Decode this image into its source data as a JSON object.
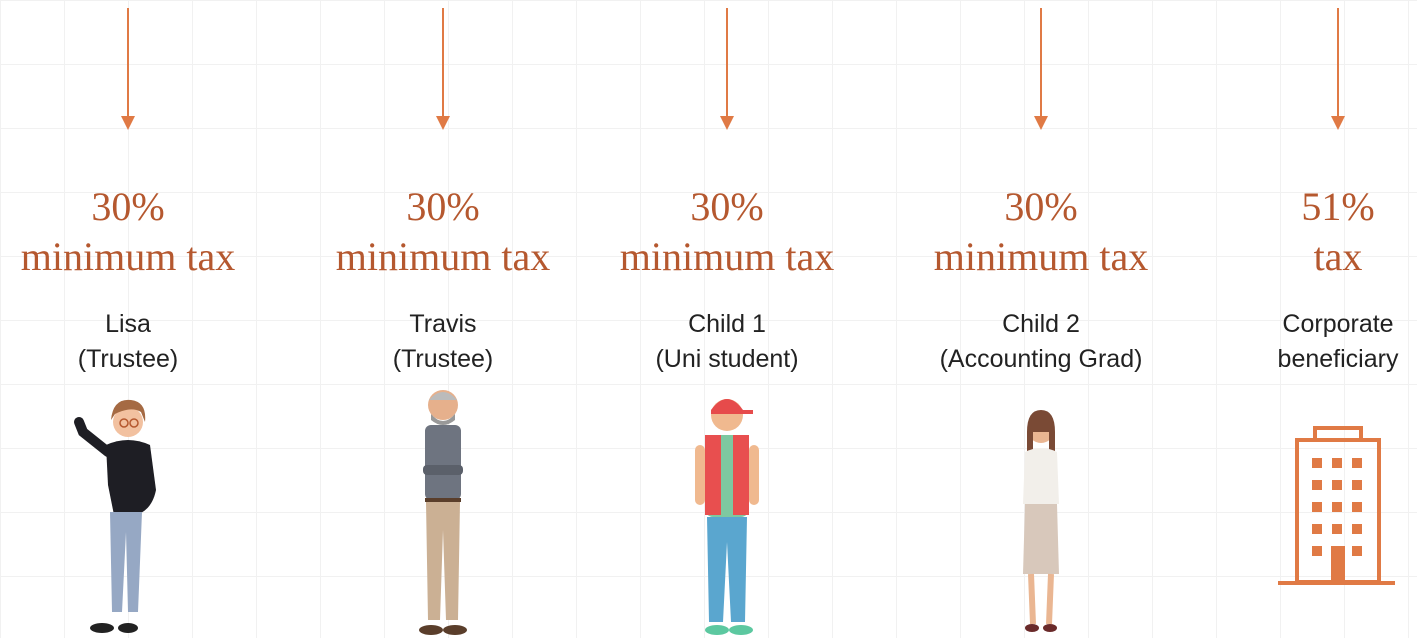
{
  "beneficiaries": [
    {
      "rate": "30%",
      "tax_label": "minimum tax",
      "name": "Lisa",
      "role": "(Trustee)"
    },
    {
      "rate": "30%",
      "tax_label": "minimum tax",
      "name": "Travis",
      "role": "(Trustee)"
    },
    {
      "rate": "30%",
      "tax_label": "minimum tax",
      "name": "Child 1",
      "role": "(Uni student)"
    },
    {
      "rate": "30%",
      "tax_label": "minimum tax",
      "name": "Child 2",
      "role": "(Accounting Grad)"
    },
    {
      "rate": "51%",
      "tax_label": "tax",
      "name": "Corporate",
      "role": "beneficiary"
    }
  ]
}
